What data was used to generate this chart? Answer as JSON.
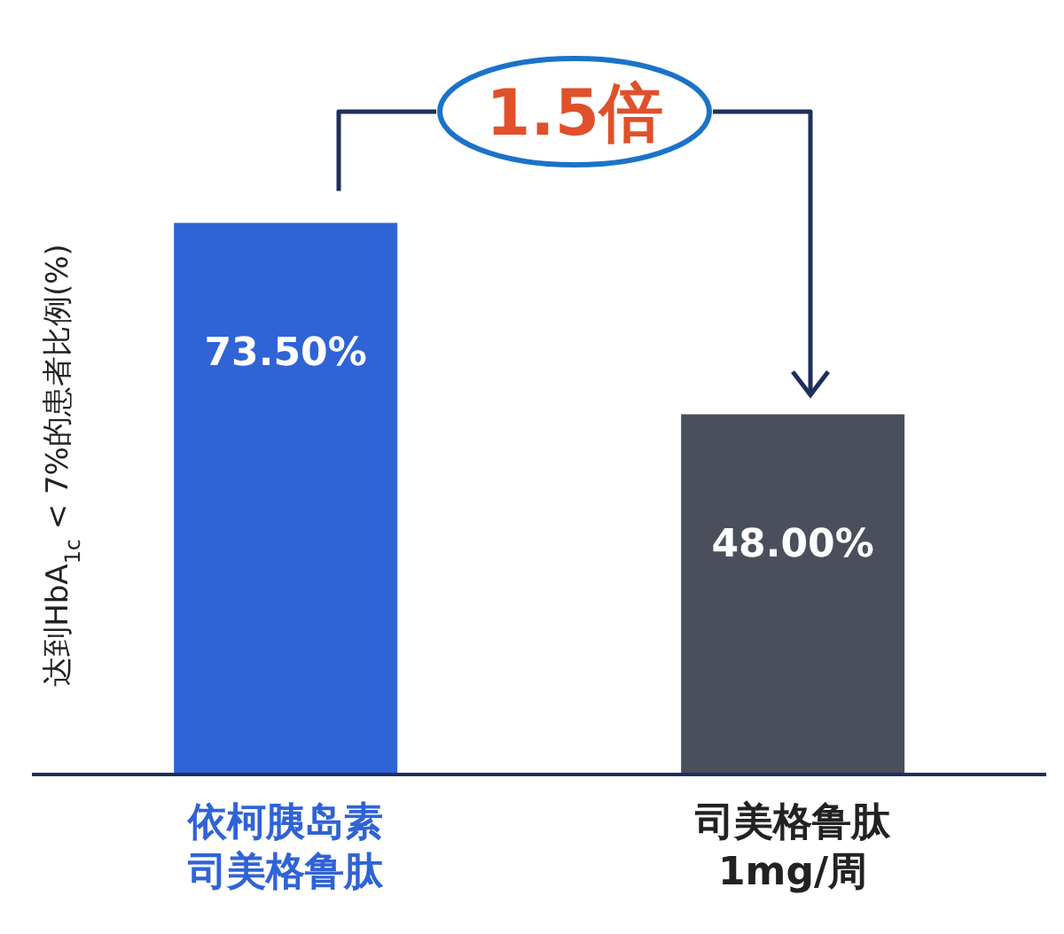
{
  "chart_data": {
    "type": "bar",
    "ylabel": "达到HbA$_{1c}$ < 7%的患者比例(%)",
    "categories": [
      "依柯胰岛素司美格鲁肽",
      "司美格鲁肽1mg/周"
    ],
    "values": [
      73.5,
      48.0
    ],
    "colors": [
      "#2f63d6",
      "#4b4f5c"
    ],
    "value_labels": [
      "73.50%",
      "48.00%"
    ],
    "annotations": [
      "1.5倍"
    ]
  }
}
